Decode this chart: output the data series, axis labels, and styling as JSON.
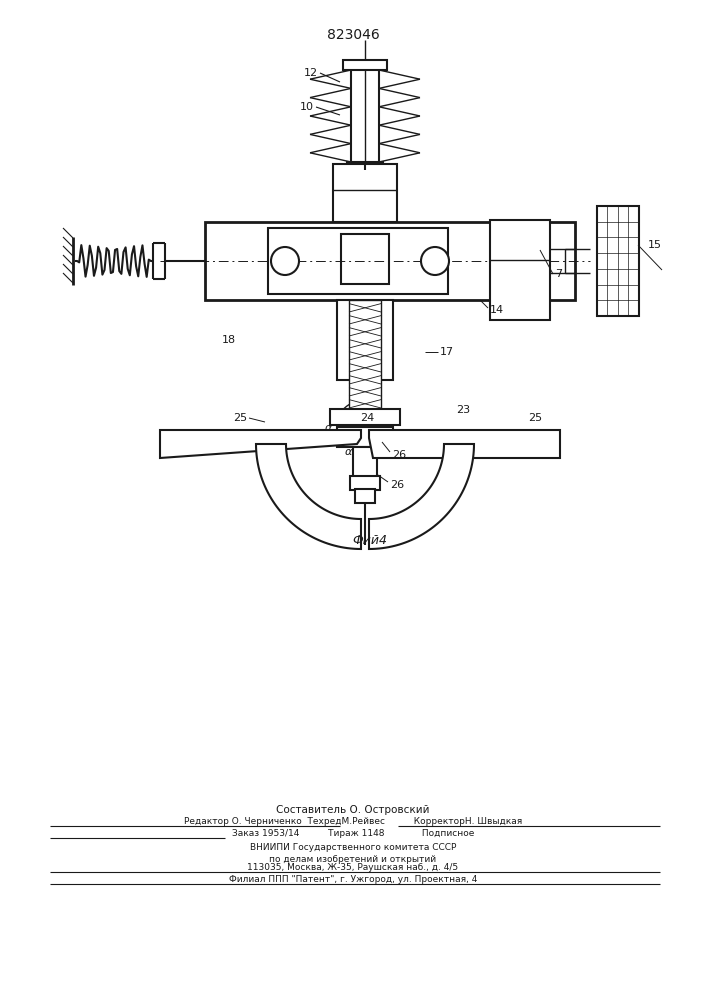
{
  "patent_number": "823046",
  "fig_label": "Фий4",
  "background_color": "#ffffff",
  "line_color": "#1a1a1a",
  "text_color": "#1a1a1a",
  "footer_lines": [
    "Составитель О. Островский",
    "Редактор О. Черниченко  ТехредМ.Рейвес          КорректорН. Швыдкая",
    "Заказ 1953/14          Тираж 1148             Подписное",
    "ВНИИПИ Государственного комитета СССР",
    "по делам изобретений и открытий",
    "113035, Москва, Ж-35, Раушская наб., д. 4/5",
    "Филиал ППП \"Патент\", г. Ужгород, ул. Проектная, 4"
  ]
}
